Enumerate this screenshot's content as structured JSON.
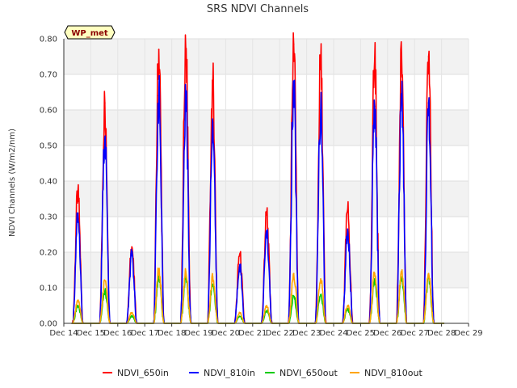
{
  "chart_data": {
    "type": "line",
    "title": "SRS NDVI Channels",
    "ylabel": "NDVI Channels (W/m2/nm)",
    "xlabel": "",
    "station_label": "WP_met",
    "xlim": [
      14,
      29
    ],
    "ylim": [
      0,
      0.8
    ],
    "x_ticks": [
      {
        "value": 14,
        "label": "Dec 14"
      },
      {
        "value": 15,
        "label": "Dec 15"
      },
      {
        "value": 16,
        "label": "Dec 16"
      },
      {
        "value": 17,
        "label": "Dec 17"
      },
      {
        "value": 18,
        "label": "Dec 18"
      },
      {
        "value": 19,
        "label": "Dec 19"
      },
      {
        "value": 20,
        "label": "Dec 20"
      },
      {
        "value": 21,
        "label": "Dec 21"
      },
      {
        "value": 22,
        "label": "Dec 22"
      },
      {
        "value": 23,
        "label": "Dec 23"
      },
      {
        "value": 24,
        "label": "Dec 24"
      },
      {
        "value": 25,
        "label": "Dec 25"
      },
      {
        "value": 26,
        "label": "Dec 26"
      },
      {
        "value": 27,
        "label": "Dec 27"
      },
      {
        "value": 28,
        "label": "Dec 28"
      },
      {
        "value": 29,
        "label": "Dec 29"
      }
    ],
    "y_ticks": [
      {
        "value": 0.0,
        "label": "0.00"
      },
      {
        "value": 0.1,
        "label": "0.10"
      },
      {
        "value": 0.2,
        "label": "0.20"
      },
      {
        "value": 0.3,
        "label": "0.30"
      },
      {
        "value": 0.4,
        "label": "0.40"
      },
      {
        "value": 0.5,
        "label": "0.50"
      },
      {
        "value": 0.6,
        "label": "0.60"
      },
      {
        "value": 0.7,
        "label": "0.70"
      },
      {
        "value": 0.8,
        "label": "0.80"
      }
    ],
    "days": [
      15,
      16,
      17,
      18,
      19,
      20,
      21,
      22,
      23,
      24,
      25,
      26,
      27,
      28
    ],
    "day_start_offset": 0.32,
    "day_end_offset": 0.72,
    "series": [
      {
        "name": "NDVI_650in",
        "color": "#ff0000",
        "peaks": [
          0.37,
          0.62,
          0.215,
          0.77,
          0.77,
          0.68,
          0.195,
          0.31,
          0.785,
          0.73,
          0.32,
          0.74,
          0.75,
          0.75
        ]
      },
      {
        "name": "NDVI_810in",
        "color": "#0000ff",
        "peaks": [
          0.31,
          0.52,
          0.19,
          0.64,
          0.63,
          0.565,
          0.165,
          0.26,
          0.655,
          0.6,
          0.265,
          0.61,
          0.625,
          0.62
        ]
      },
      {
        "name": "NDVI_650out",
        "color": "#00cc00",
        "peaks": [
          0.05,
          0.09,
          0.02,
          0.13,
          0.125,
          0.11,
          0.02,
          0.035,
          0.075,
          0.08,
          0.04,
          0.125,
          0.13,
          0.13
        ]
      },
      {
        "name": "NDVI_810out",
        "color": "#ffa500",
        "peaks": [
          0.065,
          0.12,
          0.03,
          0.15,
          0.145,
          0.13,
          0.03,
          0.05,
          0.14,
          0.125,
          0.05,
          0.14,
          0.145,
          0.14
        ]
      }
    ]
  }
}
